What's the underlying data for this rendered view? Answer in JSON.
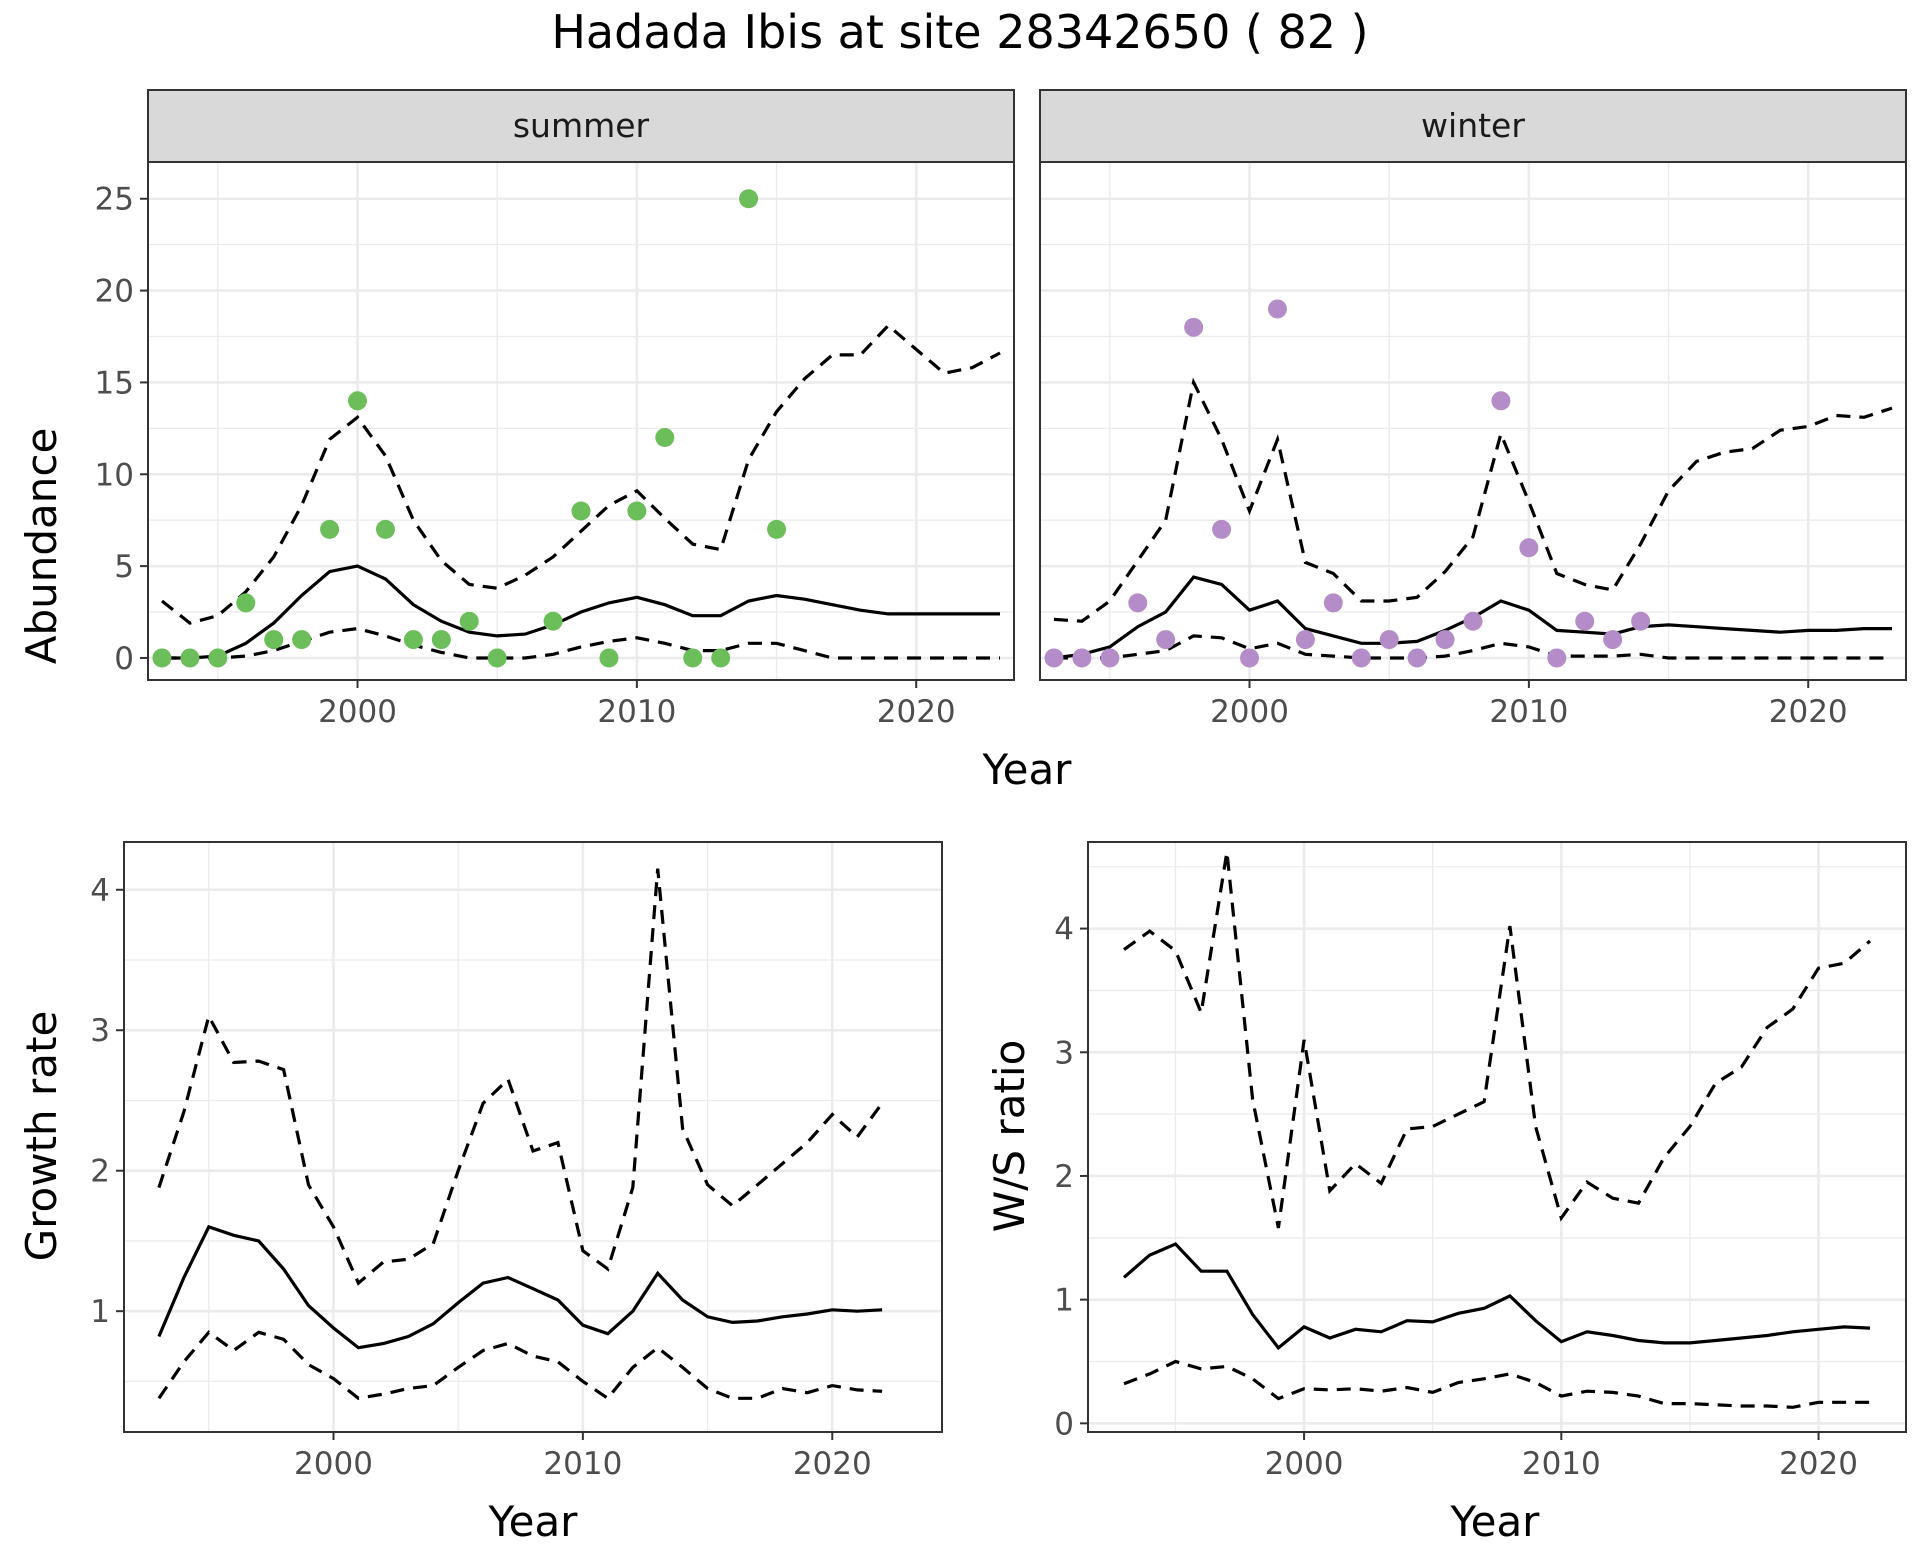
{
  "title": "Hadada Ibis at site 28342650 ( 82 )",
  "colors": {
    "summer_points": "#6BBE5A",
    "winter_points": "#B48CC8",
    "strip_fill": "#d9d9d9",
    "lines": "#000000"
  },
  "chart_data": [
    {
      "type": "line",
      "facet": "summer",
      "ylabel": "Abundance",
      "xlabel": "Year",
      "xlim": [
        1992.5,
        2023.5
      ],
      "ylim": [
        -1.2,
        27
      ],
      "x_ticks": [
        2000,
        2010,
        2020
      ],
      "y_ticks": [
        0,
        5,
        10,
        15,
        20,
        25
      ],
      "grid": true,
      "series": [
        {
          "role": "mean",
          "style": "solid",
          "x": [
            1993,
            1994,
            1995,
            1996,
            1997,
            1998,
            1999,
            2000,
            2001,
            2002,
            2003,
            2004,
            2005,
            2006,
            2007,
            2008,
            2009,
            2010,
            2011,
            2012,
            2013,
            2014,
            2015,
            2016,
            2017,
            2018,
            2019,
            2020,
            2021,
            2022,
            2023
          ],
          "y": [
            0,
            0,
            0.1,
            0.8,
            1.9,
            3.4,
            4.7,
            5.0,
            4.3,
            2.9,
            2.0,
            1.4,
            1.2,
            1.3,
            1.8,
            2.5,
            3.0,
            3.3,
            2.9,
            2.3,
            2.3,
            3.1,
            3.4,
            3.2,
            2.9,
            2.6,
            2.4,
            2.4,
            2.4,
            2.4,
            2.4
          ]
        },
        {
          "role": "upper",
          "style": "dashed",
          "x": [
            1993,
            1994,
            1995,
            1996,
            1997,
            1998,
            1999,
            2000,
            2001,
            2002,
            2003,
            2004,
            2005,
            2006,
            2007,
            2008,
            2009,
            2010,
            2011,
            2012,
            2013,
            2014,
            2015,
            2016,
            2017,
            2018,
            2019,
            2020,
            2021,
            2022,
            2023
          ],
          "y": [
            3.1,
            1.9,
            2.3,
            3.6,
            5.5,
            8.3,
            11.9,
            13.1,
            11.0,
            7.5,
            5.3,
            4.0,
            3.8,
            4.5,
            5.5,
            6.9,
            8.3,
            9.1,
            7.6,
            6.2,
            5.9,
            10.8,
            13.4,
            15.2,
            16.5,
            16.5,
            18.1,
            16.8,
            15.5,
            15.8,
            16.6
          ]
        },
        {
          "role": "lower",
          "style": "dashed",
          "x": [
            1993,
            1994,
            1995,
            1996,
            1997,
            1998,
            1999,
            2000,
            2001,
            2002,
            2003,
            2004,
            2005,
            2006,
            2007,
            2008,
            2009,
            2010,
            2011,
            2012,
            2013,
            2014,
            2015,
            2016,
            2017,
            2018,
            2019,
            2020,
            2021,
            2022,
            2023
          ],
          "y": [
            0,
            0,
            0,
            0.1,
            0.4,
            0.9,
            1.4,
            1.6,
            1.2,
            0.7,
            0.3,
            0,
            0,
            0,
            0.2,
            0.6,
            0.9,
            1.1,
            0.8,
            0.4,
            0.4,
            0.8,
            0.8,
            0.4,
            0,
            0,
            0,
            0,
            0,
            0,
            0
          ]
        },
        {
          "role": "observed",
          "style": "points",
          "x": [
            1993,
            1994,
            1995,
            1996,
            1997,
            1998,
            1999,
            2000,
            2001,
            2002,
            2003,
            2004,
            2005,
            2007,
            2008,
            2009,
            2010,
            2011,
            2012,
            2013,
            2014,
            2015
          ],
          "y": [
            0,
            0,
            0,
            3,
            1,
            1,
            7,
            14,
            7,
            1,
            1,
            2,
            0,
            2,
            8,
            0,
            8,
            12,
            0,
            0,
            25,
            7
          ]
        }
      ]
    },
    {
      "type": "line",
      "facet": "winter",
      "ylabel": "Abundance",
      "xlabel": "Year",
      "xlim": [
        1992.5,
        2023.5
      ],
      "ylim": [
        -1.2,
        27
      ],
      "x_ticks": [
        2000,
        2010,
        2020
      ],
      "y_ticks": [
        0,
        5,
        10,
        15,
        20,
        25
      ],
      "grid": true,
      "series": [
        {
          "role": "mean",
          "style": "solid",
          "x": [
            1993,
            1994,
            1995,
            1996,
            1997,
            1998,
            1999,
            2000,
            2001,
            2002,
            2003,
            2004,
            2005,
            2006,
            2007,
            2008,
            2009,
            2010,
            2011,
            2012,
            2013,
            2014,
            2015,
            2016,
            2017,
            2018,
            2019,
            2020,
            2021,
            2022,
            2023
          ],
          "y": [
            0,
            0.2,
            0.6,
            1.7,
            2.5,
            4.4,
            4.0,
            2.6,
            3.1,
            1.6,
            1.2,
            0.8,
            0.8,
            0.9,
            1.5,
            2.2,
            3.1,
            2.6,
            1.5,
            1.4,
            1.3,
            1.7,
            1.8,
            1.7,
            1.6,
            1.5,
            1.4,
            1.5,
            1.5,
            1.6,
            1.6
          ]
        },
        {
          "role": "upper",
          "style": "dashed",
          "x": [
            1993,
            1994,
            1995,
            1996,
            1997,
            1998,
            1999,
            2000,
            2001,
            2002,
            2003,
            2004,
            2005,
            2006,
            2007,
            2008,
            2009,
            2010,
            2011,
            2012,
            2013,
            2014,
            2015,
            2016,
            2017,
            2018,
            2019,
            2020,
            2021,
            2022,
            2023
          ],
          "y": [
            2.1,
            2.0,
            3.1,
            5.3,
            7.5,
            15.0,
            11.9,
            8.0,
            11.9,
            5.2,
            4.6,
            3.1,
            3.1,
            3.3,
            4.7,
            6.6,
            12.2,
            8.5,
            4.6,
            4.0,
            3.7,
            6.2,
            9.1,
            10.7,
            11.2,
            11.4,
            12.4,
            12.6,
            13.2,
            13.1,
            13.6
          ]
        },
        {
          "role": "lower",
          "style": "dashed",
          "x": [
            1993,
            1994,
            1995,
            1996,
            1997,
            1998,
            1999,
            2000,
            2001,
            2002,
            2003,
            2004,
            2005,
            2006,
            2007,
            2008,
            2009,
            2010,
            2011,
            2012,
            2013,
            2014,
            2015,
            2016,
            2017,
            2018,
            2019,
            2020,
            2021,
            2022,
            2023
          ],
          "y": [
            0,
            0,
            0,
            0.2,
            0.4,
            1.2,
            1.1,
            0.5,
            0.8,
            0.2,
            0.1,
            0,
            0,
            0,
            0.1,
            0.4,
            0.8,
            0.6,
            0.1,
            0.1,
            0.1,
            0.2,
            0,
            0,
            0,
            0,
            0,
            0,
            0,
            0,
            0
          ]
        },
        {
          "role": "observed",
          "style": "points",
          "x": [
            1993,
            1994,
            1995,
            1996,
            1997,
            1998,
            1999,
            2000,
            2001,
            2002,
            2003,
            2004,
            2005,
            2006,
            2007,
            2008,
            2009,
            2010,
            2011,
            2012,
            2013,
            2014
          ],
          "y": [
            0,
            0,
            0,
            3,
            1,
            18,
            7,
            0,
            19,
            1,
            3,
            0,
            1,
            0,
            1,
            2,
            14,
            6,
            0,
            2,
            1,
            2
          ]
        }
      ]
    },
    {
      "type": "line",
      "ylabel": "Growth rate",
      "xlabel": "Year",
      "xlim": [
        1991.6,
        2024.4
      ],
      "ylim": [
        0.14,
        4.34
      ],
      "x_ticks": [
        2000,
        2010,
        2020
      ],
      "y_ticks": [
        1,
        2,
        3,
        4
      ],
      "grid": true,
      "series": [
        {
          "role": "mean",
          "style": "solid",
          "x": [
            1993,
            1994,
            1995,
            1996,
            1997,
            1998,
            1999,
            2000,
            2001,
            2002,
            2003,
            2004,
            2005,
            2006,
            2007,
            2008,
            2009,
            2010,
            2011,
            2012,
            2013,
            2014,
            2015,
            2016,
            2017,
            2018,
            2019,
            2020,
            2021,
            2022
          ],
          "y": [
            0.82,
            1.24,
            1.6,
            1.54,
            1.5,
            1.3,
            1.04,
            0.88,
            0.74,
            0.77,
            0.82,
            0.91,
            1.06,
            1.2,
            1.24,
            1.16,
            1.08,
            0.9,
            0.84,
            1.0,
            1.27,
            1.08,
            0.96,
            0.92,
            0.93,
            0.96,
            0.98,
            1.01,
            1.0,
            1.01
          ]
        },
        {
          "role": "upper",
          "style": "dashed",
          "x": [
            1993,
            1994,
            1995,
            1996,
            1997,
            1998,
            1999,
            2000,
            2001,
            2002,
            2003,
            2004,
            2005,
            2006,
            2007,
            2008,
            2009,
            2010,
            2011,
            2012,
            2013,
            2014,
            2015,
            2016,
            2017,
            2018,
            2019,
            2020,
            2021,
            2022
          ],
          "y": [
            1.88,
            2.42,
            3.1,
            2.77,
            2.78,
            2.72,
            1.9,
            1.6,
            1.2,
            1.35,
            1.37,
            1.48,
            2.0,
            2.48,
            2.65,
            2.14,
            2.2,
            1.43,
            1.3,
            1.88,
            4.15,
            2.3,
            1.9,
            1.75,
            1.9,
            2.05,
            2.2,
            2.4,
            2.24,
            2.48
          ]
        },
        {
          "role": "lower",
          "style": "dashed",
          "x": [
            1993,
            1994,
            1995,
            1996,
            1997,
            1998,
            1999,
            2000,
            2001,
            2002,
            2003,
            2004,
            2005,
            2006,
            2007,
            2008,
            2009,
            2010,
            2011,
            2012,
            2013,
            2014,
            2015,
            2016,
            2017,
            2018,
            2019,
            2020,
            2021,
            2022
          ],
          "y": [
            0.38,
            0.64,
            0.85,
            0.72,
            0.85,
            0.8,
            0.62,
            0.52,
            0.38,
            0.41,
            0.45,
            0.47,
            0.6,
            0.72,
            0.77,
            0.68,
            0.64,
            0.5,
            0.38,
            0.6,
            0.74,
            0.6,
            0.45,
            0.38,
            0.38,
            0.45,
            0.42,
            0.47,
            0.44,
            0.43
          ]
        }
      ]
    },
    {
      "type": "line",
      "ylabel": "W/S ratio",
      "xlabel": "Year",
      "xlim": [
        1991.6,
        2023.4
      ],
      "ylim": [
        -0.07,
        4.7
      ],
      "x_ticks": [
        2000,
        2010,
        2020
      ],
      "y_ticks": [
        0,
        1,
        2,
        3,
        4
      ],
      "grid": true,
      "series": [
        {
          "role": "mean",
          "style": "solid",
          "x": [
            1993,
            1994,
            1995,
            1996,
            1997,
            1998,
            1999,
            2000,
            2001,
            2002,
            2003,
            2004,
            2005,
            2006,
            2007,
            2008,
            2009,
            2010,
            2011,
            2012,
            2013,
            2014,
            2015,
            2016,
            2017,
            2018,
            2019,
            2020,
            2021,
            2022
          ],
          "y": [
            1.18,
            1.36,
            1.45,
            1.23,
            1.23,
            0.88,
            0.61,
            0.78,
            0.69,
            0.76,
            0.74,
            0.83,
            0.82,
            0.89,
            0.93,
            1.03,
            0.83,
            0.66,
            0.74,
            0.71,
            0.67,
            0.65,
            0.65,
            0.67,
            0.69,
            0.71,
            0.74,
            0.76,
            0.78,
            0.77
          ]
        },
        {
          "role": "upper",
          "style": "dashed",
          "x": [
            1993,
            1994,
            1995,
            1996,
            1997,
            1998,
            1999,
            2000,
            2001,
            2002,
            2003,
            2004,
            2005,
            2006,
            2007,
            2008,
            2009,
            2010,
            2011,
            2012,
            2013,
            2014,
            2015,
            2016,
            2017,
            2018,
            2019,
            2020,
            2021,
            2022
          ],
          "y": [
            3.83,
            3.98,
            3.82,
            3.32,
            4.62,
            2.62,
            1.58,
            3.1,
            1.88,
            2.1,
            1.94,
            2.38,
            2.4,
            2.5,
            2.6,
            4.02,
            2.4,
            1.66,
            1.95,
            1.82,
            1.78,
            2.15,
            2.4,
            2.75,
            2.88,
            3.2,
            3.35,
            3.68,
            3.72,
            3.9
          ]
        },
        {
          "role": "lower",
          "style": "dashed",
          "x": [
            1993,
            1994,
            1995,
            1996,
            1997,
            1998,
            1999,
            2000,
            2001,
            2002,
            2003,
            2004,
            2005,
            2006,
            2007,
            2008,
            2009,
            2010,
            2011,
            2012,
            2013,
            2014,
            2015,
            2016,
            2017,
            2018,
            2019,
            2020,
            2021,
            2022
          ],
          "y": [
            0.32,
            0.4,
            0.5,
            0.44,
            0.46,
            0.36,
            0.2,
            0.28,
            0.27,
            0.28,
            0.26,
            0.29,
            0.25,
            0.33,
            0.36,
            0.4,
            0.33,
            0.22,
            0.26,
            0.25,
            0.22,
            0.16,
            0.16,
            0.15,
            0.14,
            0.14,
            0.13,
            0.17,
            0.17,
            0.17
          ]
        }
      ]
    }
  ]
}
